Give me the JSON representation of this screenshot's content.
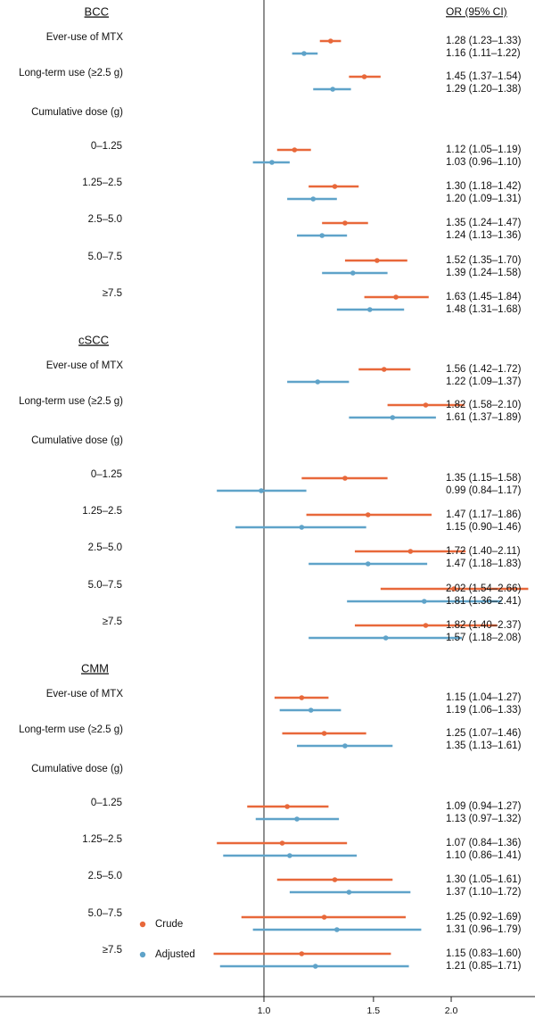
{
  "chart_data": {
    "type": "forest",
    "x_scale": "log",
    "xlim": [
      0.3,
      4.0
    ],
    "x_ticks": [
      "0.3",
      "1.0",
      "1.5",
      "2.0",
      "3.0",
      "4.0"
    ],
    "reference_line": 1.0,
    "ci_header": "OR (95% CI)",
    "colors": {
      "Crude": "#e8683a",
      "Adjusted": "#5fa3c9"
    },
    "legend": {
      "position": "bottom-left",
      "entries": [
        "Crude",
        "Adjusted"
      ]
    },
    "sections": [
      {
        "title": "BCC",
        "rows": [
          {
            "label": "Ever-use of MTX",
            "crude": [
              1.28,
              1.23,
              1.33
            ],
            "adjusted": [
              1.16,
              1.11,
              1.22
            ],
            "crude_text": "1.28 (1.23–1.33)",
            "adjusted_text": "1.16 (1.11–1.22)"
          },
          {
            "label": "Long-term use (≥2.5 g)",
            "crude": [
              1.45,
              1.37,
              1.54
            ],
            "adjusted": [
              1.29,
              1.2,
              1.38
            ],
            "crude_text": "1.45 (1.37–1.54)",
            "adjusted_text": "1.29 (1.20–1.38)"
          },
          {
            "label": "Cumulative dose (g)"
          },
          {
            "label": "0–1.25",
            "crude": [
              1.12,
              1.05,
              1.19
            ],
            "adjusted": [
              1.03,
              0.96,
              1.1
            ],
            "crude_text": "1.12 (1.05–1.19)",
            "adjusted_text": "1.03 (0.96–1.10)"
          },
          {
            "label": "1.25–2.5",
            "crude": [
              1.3,
              1.18,
              1.42
            ],
            "adjusted": [
              1.2,
              1.09,
              1.31
            ],
            "crude_text": "1.30 (1.18–1.42)",
            "adjusted_text": "1.20 (1.09–1.31)"
          },
          {
            "label": "2.5–5.0",
            "crude": [
              1.35,
              1.24,
              1.47
            ],
            "adjusted": [
              1.24,
              1.13,
              1.36
            ],
            "crude_text": "1.35 (1.24–1.47)",
            "adjusted_text": "1.24 (1.13–1.36)"
          },
          {
            "label": "5.0–7.5",
            "crude": [
              1.52,
              1.35,
              1.7
            ],
            "adjusted": [
              1.39,
              1.24,
              1.58
            ],
            "crude_text": "1.52 (1.35–1.70)",
            "adjusted_text": "1.39 (1.24–1.58)"
          },
          {
            "label": "≥7.5",
            "crude": [
              1.63,
              1.45,
              1.84
            ],
            "adjusted": [
              1.48,
              1.31,
              1.68
            ],
            "crude_text": "1.63 (1.45–1.84)",
            "adjusted_text": "1.48 (1.31–1.68)"
          }
        ]
      },
      {
        "title": "cSCC",
        "rows": [
          {
            "label": "Ever-use of MTX",
            "crude": [
              1.56,
              1.42,
              1.72
            ],
            "adjusted": [
              1.22,
              1.09,
              1.37
            ],
            "crude_text": "1.56 (1.42–1.72)",
            "adjusted_text": "1.22 (1.09–1.37)"
          },
          {
            "label": "Long-term use (≥2.5 g)",
            "crude": [
              1.82,
              1.58,
              2.1
            ],
            "adjusted": [
              1.61,
              1.37,
              1.89
            ],
            "crude_text": "1.82 (1.58–2.10)",
            "adjusted_text": "1.61 (1.37–1.89)"
          },
          {
            "label": "Cumulative dose (g)"
          },
          {
            "label": "0–1.25",
            "crude": [
              1.35,
              1.15,
              1.58
            ],
            "adjusted": [
              0.99,
              0.84,
              1.17
            ],
            "crude_text": "1.35 (1.15–1.58)",
            "adjusted_text": "0.99 (0.84–1.17)"
          },
          {
            "label": "1.25–2.5",
            "crude": [
              1.47,
              1.17,
              1.86
            ],
            "adjusted": [
              1.15,
              0.9,
              1.46
            ],
            "crude_text": "1.47 (1.17–1.86)",
            "adjusted_text": "1.15 (0.90–1.46)"
          },
          {
            "label": "2.5–5.0",
            "crude": [
              1.72,
              1.4,
              2.11
            ],
            "adjusted": [
              1.47,
              1.18,
              1.83
            ],
            "crude_text": "1.72 (1.40–2.11)",
            "adjusted_text": "1.47 (1.18–1.83)"
          },
          {
            "label": "5.0–7.5",
            "crude": [
              2.02,
              1.54,
              2.66
            ],
            "adjusted": [
              1.81,
              1.36,
              2.41
            ],
            "crude_text": "2.02 (1.54–2.66)",
            "adjusted_text": "1.81 (1.36–2.41)"
          },
          {
            "label": "≥7.5",
            "crude": [
              1.82,
              1.4,
              2.37
            ],
            "adjusted": [
              1.57,
              1.18,
              2.08
            ],
            "crude_text": "1.82 (1.40–2.37)",
            "adjusted_text": "1.57 (1.18–2.08)"
          }
        ]
      },
      {
        "title": "CMM",
        "rows": [
          {
            "label": "Ever-use of MTX",
            "crude": [
              1.15,
              1.04,
              1.27
            ],
            "adjusted": [
              1.19,
              1.06,
              1.33
            ],
            "crude_text": "1.15 (1.04–1.27)",
            "adjusted_text": "1.19 (1.06–1.33)"
          },
          {
            "label": "Long-term use (≥2.5 g)",
            "crude": [
              1.25,
              1.07,
              1.46
            ],
            "adjusted": [
              1.35,
              1.13,
              1.61
            ],
            "crude_text": "1.25 (1.07–1.46)",
            "adjusted_text": "1.35 (1.13–1.61)"
          },
          {
            "label": "Cumulative dose (g)"
          },
          {
            "label": "0–1.25",
            "crude": [
              1.09,
              0.94,
              1.27
            ],
            "adjusted": [
              1.13,
              0.97,
              1.32
            ],
            "crude_text": "1.09 (0.94–1.27)",
            "adjusted_text": "1.13 (0.97–1.32)"
          },
          {
            "label": "1.25–2.5",
            "crude": [
              1.07,
              0.84,
              1.36
            ],
            "adjusted": [
              1.1,
              0.86,
              1.41
            ],
            "crude_text": "1.07 (0.84–1.36)",
            "adjusted_text": "1.10 (0.86–1.41)"
          },
          {
            "label": "2.5–5.0",
            "crude": [
              1.3,
              1.05,
              1.61
            ],
            "adjusted": [
              1.37,
              1.1,
              1.72
            ],
            "crude_text": "1.30 (1.05–1.61)",
            "adjusted_text": "1.37 (1.10–1.72)"
          },
          {
            "label": "5.0–7.5",
            "crude": [
              1.25,
              0.92,
              1.69
            ],
            "adjusted": [
              1.31,
              0.96,
              1.79
            ],
            "crude_text": "1.25 (0.92–1.69)",
            "adjusted_text": "1.31 (0.96–1.79)"
          },
          {
            "label": "≥7.5",
            "crude": [
              1.15,
              0.83,
              1.6
            ],
            "adjusted": [
              1.21,
              0.85,
              1.71
            ],
            "crude_text": "1.15 (0.83–1.60)",
            "adjusted_text": "1.21 (0.85–1.71)"
          }
        ]
      }
    ]
  }
}
